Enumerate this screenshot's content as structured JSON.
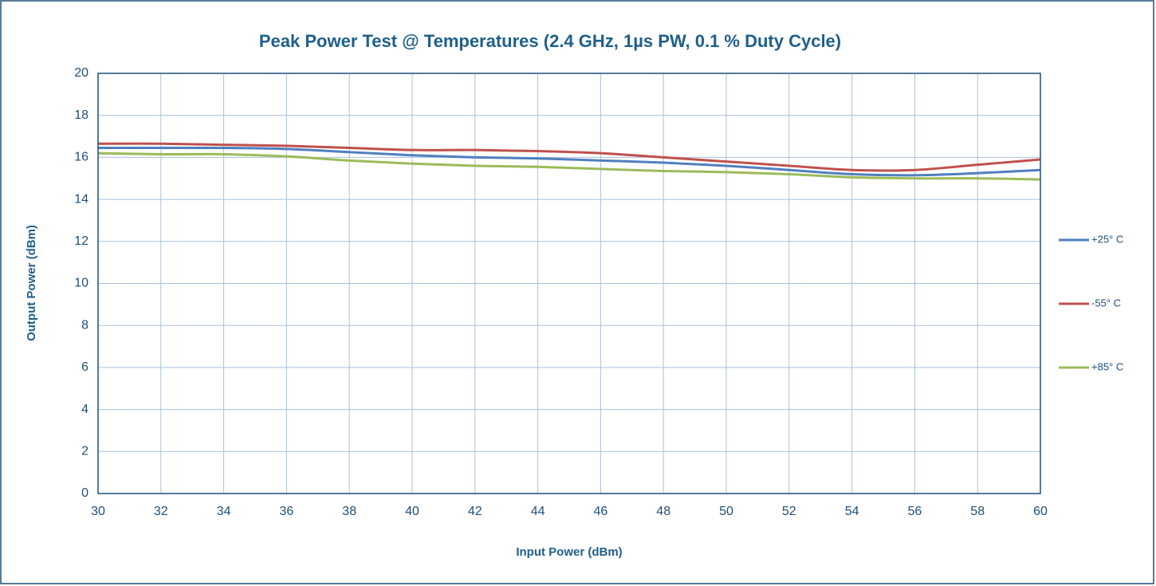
{
  "chart_data": {
    "type": "line",
    "title": "Peak Power Test @ Temperatures (2.4 GHz, 1µs PW, 0.1 % Duty Cycle)",
    "x_label": "Input Power (dBm)",
    "y_label": "Output Power (dBm)",
    "x": [
      30,
      32,
      34,
      36,
      38,
      40,
      42,
      44,
      46,
      48,
      50,
      52,
      54,
      56,
      58,
      60
    ],
    "series": [
      {
        "name": "+25° C",
        "color": "#4f7fbf",
        "values": [
          16.45,
          16.45,
          16.45,
          16.4,
          16.25,
          16.1,
          16.0,
          15.95,
          15.85,
          15.75,
          15.6,
          15.4,
          15.2,
          15.15,
          15.25,
          15.4
        ]
      },
      {
        "name": "-55° C",
        "color": "#c0504d",
        "values": [
          16.65,
          16.65,
          16.6,
          16.55,
          16.45,
          16.35,
          16.35,
          16.3,
          16.2,
          16.0,
          15.8,
          15.6,
          15.4,
          15.4,
          15.65,
          15.9
        ]
      },
      {
        "name": "+85° C",
        "color": "#9bbb59",
        "values": [
          16.2,
          16.15,
          16.15,
          16.05,
          15.85,
          15.7,
          15.6,
          15.55,
          15.45,
          15.35,
          15.3,
          15.2,
          15.05,
          15.0,
          15.0,
          14.95
        ]
      }
    ],
    "xlim": [
      30,
      60
    ],
    "xticks": [
      30,
      32,
      34,
      36,
      38,
      40,
      42,
      44,
      46,
      48,
      50,
      52,
      54,
      56,
      58,
      60
    ],
    "ylim": [
      0,
      20
    ],
    "yticks": [
      0,
      2,
      4,
      6,
      8,
      10,
      12,
      14,
      16,
      18,
      20
    ],
    "grid": true,
    "legend": "right"
  }
}
